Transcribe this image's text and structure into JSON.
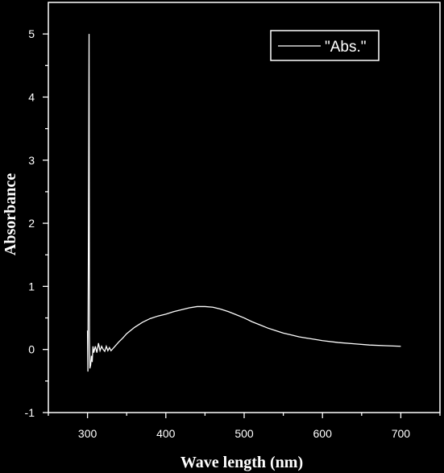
{
  "chart_data": {
    "type": "line",
    "title": "",
    "xlabel": "Wave length (nm)",
    "ylabel": "Absorbance",
    "xlim": [
      250,
      750
    ],
    "ylim": [
      -1,
      5.5
    ],
    "x_ticks": [
      300,
      400,
      500,
      600,
      700
    ],
    "y_ticks": [
      -1,
      0,
      1,
      2,
      3,
      4,
      5
    ],
    "grid": false,
    "legend_position": "top-right",
    "colors": {
      "background": "#000000",
      "foreground": "#ffffff",
      "line": "#ffffff"
    },
    "series": [
      {
        "name": "\"Abs.\"",
        "x": [
          300,
          300.5,
          301,
          301.5,
          302,
          302.5,
          303,
          304,
          305,
          306,
          307,
          308,
          309,
          310,
          312,
          314,
          316,
          318,
          320,
          322,
          324,
          326,
          328,
          330,
          335,
          340,
          345,
          350,
          360,
          370,
          380,
          390,
          400,
          410,
          420,
          430,
          440,
          450,
          460,
          470,
          480,
          490,
          500,
          510,
          520,
          530,
          540,
          550,
          560,
          570,
          580,
          590,
          600,
          620,
          640,
          660,
          680,
          700
        ],
        "y": [
          0.3,
          -0.35,
          1.2,
          3.0,
          5.0,
          0.2,
          -0.3,
          -0.25,
          -0.1,
          -0.2,
          0.05,
          -0.05,
          0.0,
          0.05,
          -0.05,
          0.1,
          -0.02,
          0.05,
          0.0,
          -0.03,
          0.05,
          -0.02,
          0.03,
          -0.02,
          0.05,
          0.12,
          0.18,
          0.25,
          0.35,
          0.43,
          0.49,
          0.53,
          0.56,
          0.6,
          0.63,
          0.66,
          0.68,
          0.68,
          0.67,
          0.64,
          0.6,
          0.55,
          0.5,
          0.44,
          0.39,
          0.34,
          0.3,
          0.26,
          0.23,
          0.2,
          0.18,
          0.16,
          0.14,
          0.11,
          0.09,
          0.07,
          0.06,
          0.05
        ]
      }
    ]
  }
}
